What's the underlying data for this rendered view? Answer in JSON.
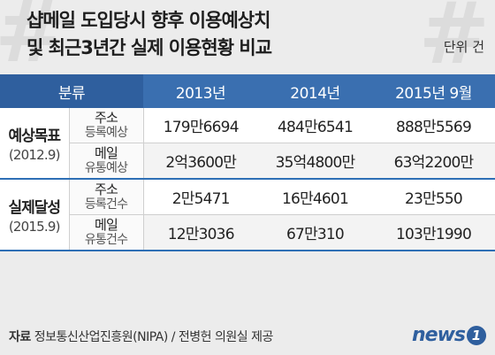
{
  "title": {
    "line1": "샵메일 도입당시 향후 이용예상치",
    "line2": "및 최근3년간 실제 이용현황 비교"
  },
  "unit": "단위 건",
  "table": {
    "headers": [
      "분류",
      "2013년",
      "2014년",
      "2015년 9월"
    ],
    "groups": [
      {
        "category": "예상목표",
        "period": "(2012.9)",
        "rows": [
          {
            "sub1": "주소",
            "sub2": "등록예상",
            "values": [
              "179만6694",
              "484만6541",
              "888만5569"
            ]
          },
          {
            "sub1": "메일",
            "sub2": "유통예상",
            "values": [
              "2억3600만",
              "35억4800만",
              "63억2200만"
            ]
          }
        ]
      },
      {
        "category": "실제달성",
        "period": "(2015.9)",
        "rows": [
          {
            "sub1": "주소",
            "sub2": "등록건수",
            "values": [
              "2만5471",
              "16만4601",
              "23만550"
            ]
          },
          {
            "sub1": "메일",
            "sub2": "유통건수",
            "values": [
              "12만3036",
              "67만310",
              "103만1990"
            ]
          }
        ]
      }
    ]
  },
  "source": {
    "label": "자료",
    "text": " 정보통신산업진흥원(NIPA) / 전병헌 의원실 제공"
  },
  "logo": {
    "word": "news",
    "badge": "1"
  },
  "colors": {
    "header": "#3a6fb0",
    "accent": "#2e6fb5"
  }
}
